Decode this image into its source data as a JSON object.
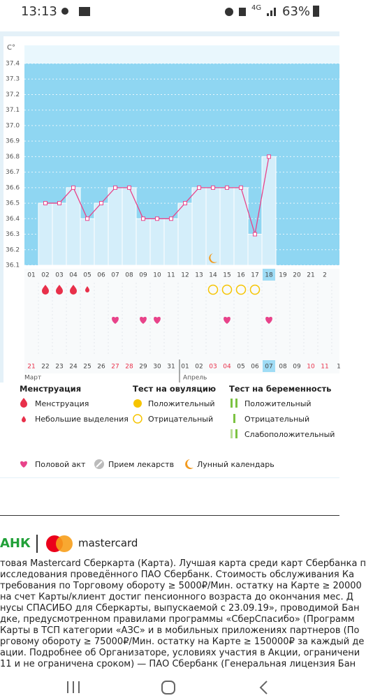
{
  "status_bar": {
    "time": "13:13",
    "network": "4G",
    "battery": "63%"
  },
  "chart_data": {
    "type": "line",
    "y_unit": "C°",
    "categories": [
      "01",
      "02",
      "03",
      "04",
      "05",
      "06",
      "07",
      "08",
      "09",
      "10",
      "11",
      "12",
      "13",
      "14",
      "15",
      "16",
      "17",
      "18",
      "19",
      "20",
      "21",
      "2"
    ],
    "series": [
      {
        "color": "#e8438a",
        "values": [
          null,
          36.5,
          36.5,
          36.6,
          36.4,
          36.5,
          36.6,
          36.6,
          36.4,
          36.4,
          36.4,
          36.5,
          36.6,
          36.6,
          36.6,
          36.6,
          36.3,
          36.8,
          null,
          null,
          null,
          null
        ]
      }
    ],
    "bar_color": "#d4eefa",
    "plot_color": "#8fd6f2",
    "ylim": [
      36.1,
      37.4
    ],
    "yticks": [
      36.1,
      36.2,
      36.3,
      36.4,
      36.5,
      36.6,
      36.7,
      36.8,
      36.9,
      {
        "value": 37,
        "label": "37.0"
      },
      37.1,
      37.2,
      37.3,
      37.4
    ],
    "grid": true,
    "selected": 17,
    "dates": [
      "21",
      "22",
      "23",
      "24",
      "25",
      "26",
      "27",
      "28",
      "29",
      "30",
      "31",
      "01",
      "02",
      "03",
      "04",
      "05",
      "06",
      "07",
      "08",
      "09",
      "10",
      "11",
      "1"
    ],
    "weekends": [
      0,
      6,
      7,
      13,
      14,
      20,
      21
    ],
    "months": [
      {
        "label": "Март",
        "start": 0
      },
      {
        "label": "Апрель",
        "start": 11
      }
    ],
    "menstruation_days": [
      "02",
      "03",
      "04"
    ],
    "spotting_days": [
      "05"
    ],
    "ovulation_negative_days": [
      "14",
      "15",
      "16",
      "17"
    ],
    "intercourse_days": [
      "07",
      "09",
      "10",
      "15",
      "18"
    ],
    "moon_days": [
      "14"
    ]
  },
  "legend": {
    "menstruation": {
      "title": "Менструация",
      "items": [
        "Менструация",
        "Небольшие выделения"
      ]
    },
    "ovulation": {
      "title": "Тест на овуляцию",
      "items": [
        "Положительный",
        "Отрицательный"
      ]
    },
    "pregnancy": {
      "title": "Тест на беременность",
      "items": [
        "Положительный",
        "Отрицательный",
        "Слабоположительный"
      ]
    },
    "other": [
      "Половой акт",
      "Прием лекарств",
      "Лунный календарь"
    ]
  },
  "ad": {
    "brand": "АНК",
    "partner": "mastercard",
    "lines": [
      "товая Mastercard Сберкарта (Карта). Лучшая карта среди карт Сбербанка п",
      "исследования проведённого ПАО Сбербанк. Стоимость обслуживания Ка",
      "требования по Торговому обороту ≥ 5000₽/Мин. остатку на Карте ≥ 20000",
      "на счет Карты/клиент достиг пенсионного возраста до окончания мес. Д",
      "нусы СПАСИБО для Сберкарты, выпускаемой с 23.09.19», проводимой Бан",
      "дке, предусмотренном правилами программы «СберСпасибо» (Программ",
      "Карты в ТСП категории «АЗС» и в мобильных приложениях партнеров (По",
      "рговому обороту ≥ 75000₽/Мин. остатку на Карте ≥ 150000₽ за каждый де",
      "ации. Подробнее об Организаторе, условиях участия в Акции, ограничени",
      "11 и не ограничена сроком) — ПАО Сбербанк (Генеральная лицензия Бан"
    ]
  }
}
